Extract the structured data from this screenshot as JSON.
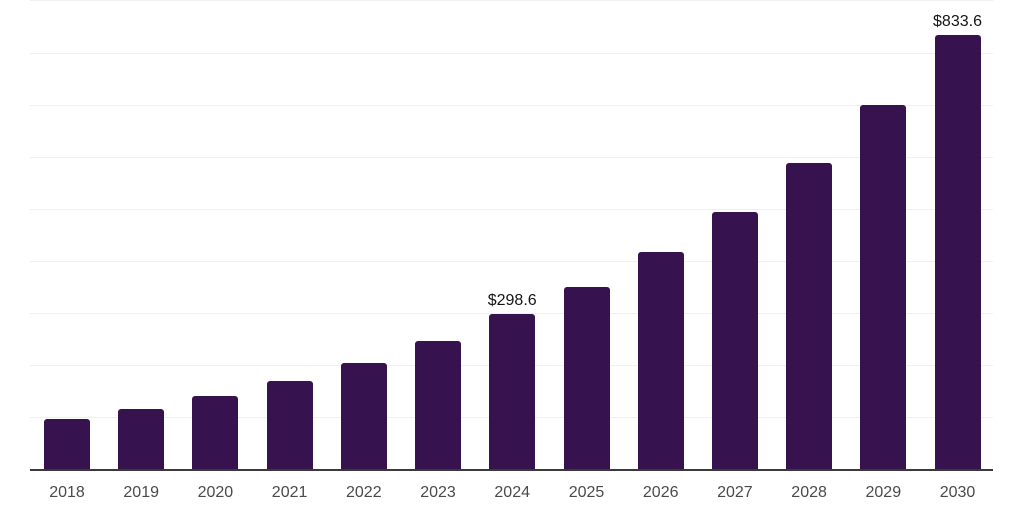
{
  "chart": {
    "background_color": "#ffffff",
    "bar_color": "#36134F",
    "axis_line_color": "#3a3a3a",
    "gridline_color": "#f0f0f0",
    "tick_label_color": "#4a4a4a",
    "data_label_color": "#141414"
  },
  "chart_data": {
    "type": "bar",
    "title": "",
    "xlabel": "",
    "ylabel": "",
    "categories": [
      "2018",
      "2019",
      "2020",
      "2021",
      "2022",
      "2023",
      "2024",
      "2025",
      "2026",
      "2027",
      "2028",
      "2029",
      "2030"
    ],
    "values": [
      96.0,
      115.3,
      140.2,
      169.0,
      203.6,
      245.9,
      298.6,
      350.2,
      416.2,
      493.1,
      587.2,
      699.2,
      833.6
    ],
    "labeled_points": [
      {
        "category": "2024",
        "label": "$298.6"
      },
      {
        "category": "2030",
        "label": "$833.6"
      }
    ],
    "ylim": [
      0,
      900
    ],
    "gridline_interval": 100,
    "grid": "horizontal-only",
    "y_axis_tick_labels": "none",
    "legend": "none"
  }
}
